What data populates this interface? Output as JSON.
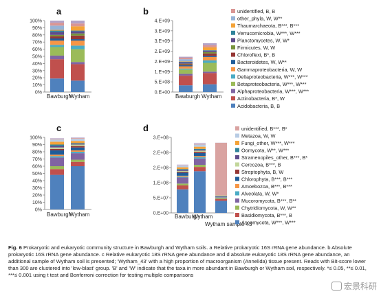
{
  "figure": {
    "caption_lead": "Fig. 6",
    "caption_text": "Prokaryotic and eukaryotic community structure in Bawburgh and Wytham soils. a Relative prokaryotic 16S rRNA gene abundance. b Absolute prokaryotic 16S rRNA gene abundance. c Relative eukaryotic 18S rRNA gene abundance and d absolute eukaryotic 18S rRNA gene abundance, an additional sample of Wytham soil is presented; 'Wytham_43' with a high proportion of macroorganism (Annelida) tissue present. Reads with Bit-score lower than 300 are clustered into 'low-blast' group. 'B' and 'W' indicate that the taxa in more abundant in Bawburgh or Wytham soil, respectively. *≤ 0.05, **≤ 0.01, ***≤ 0.001 using t test and Bonferroni correction for testing multiple comparisons",
    "watermark": "宏景科研"
  },
  "chart_data": [
    {
      "panel": "a",
      "type": "bar",
      "stacked": true,
      "categories": [
        "Bawburgh",
        "Wytham"
      ],
      "ylim": [
        0,
        100
      ],
      "yticks": [
        "0%",
        "10%",
        "20%",
        "30%",
        "40%",
        "50%",
        "60%",
        "70%",
        "80%",
        "90%",
        "100%"
      ],
      "series_ref": "prokaryote",
      "values": [
        [
          19,
          16
        ],
        [
          27,
          23
        ],
        [
          5,
          3
        ],
        [
          12,
          18
        ],
        [
          3,
          5
        ],
        [
          6,
          7
        ],
        [
          3,
          2
        ],
        [
          3,
          5
        ],
        [
          2,
          3
        ],
        [
          4,
          3
        ],
        [
          2,
          1
        ],
        [
          1,
          6
        ],
        [
          6,
          0
        ],
        [
          4,
          4
        ],
        [
          3,
          4
        ]
      ]
    },
    {
      "panel": "b",
      "type": "bar",
      "stacked": true,
      "categories": [
        "Bawburgh",
        "Wytham"
      ],
      "ylim": [
        0,
        3500000000
      ],
      "yticks": [
        "0.E+00",
        "5.E+08",
        "1.E+09",
        "2.E+09",
        "2.E+09",
        "3.E+09",
        "3.E+09",
        "4.E+09"
      ],
      "series_ref": "prokaryote",
      "values": [
        [
          330000000,
          380000000
        ],
        [
          470000000,
          550000000
        ],
        [
          90000000,
          70000000
        ],
        [
          210000000,
          430000000
        ],
        [
          50000000,
          120000000
        ],
        [
          110000000,
          170000000
        ],
        [
          50000000,
          50000000
        ],
        [
          50000000,
          120000000
        ],
        [
          30000000,
          70000000
        ],
        [
          70000000,
          70000000
        ],
        [
          30000000,
          20000000
        ],
        [
          20000000,
          140000000
        ],
        [
          100000000,
          0
        ],
        [
          70000000,
          100000000
        ],
        [
          50000000,
          100000000
        ]
      ]
    },
    {
      "panel": "c",
      "type": "bar",
      "stacked": true,
      "categories": [
        "Bawburgh",
        "Wytham"
      ],
      "ylim": [
        0,
        100
      ],
      "yticks": [
        "0%",
        "10%",
        "20%",
        "30%",
        "40%",
        "50%",
        "60%",
        "70%",
        "80%",
        "90%",
        "100%"
      ],
      "series_ref": "eukaryote",
      "values": [
        [
          48,
          60
        ],
        [
          8,
          6
        ],
        [
          4,
          3
        ],
        [
          12,
          9
        ],
        [
          2,
          2
        ],
        [
          2,
          2
        ],
        [
          6,
          4
        ],
        [
          2,
          2
        ],
        [
          2,
          2
        ],
        [
          2,
          1
        ],
        [
          2,
          1
        ],
        [
          4,
          3
        ],
        [
          3,
          3
        ],
        [
          1,
          1
        ],
        [
          1,
          1
        ]
      ]
    },
    {
      "panel": "d",
      "type": "bar",
      "stacked": true,
      "categories": [
        "Bawburgh",
        "Wytham",
        "Wytham sample 43"
      ],
      "ylim": [
        0,
        250000000
      ],
      "yticks": [
        "0.E+00",
        "5.E+07",
        "1.E+08",
        "2.E+08",
        "2.E+08",
        "3.E+08"
      ],
      "series_ref": "eukaryote",
      "values": [
        [
          78000000,
          138000000,
          40000000
        ],
        [
          13000000,
          14000000,
          6000000
        ],
        [
          6000000,
          7000000,
          3000000
        ],
        [
          20000000,
          21000000,
          2000000
        ],
        [
          3000000,
          4000000,
          1000000
        ],
        [
          3000000,
          4000000,
          1000000
        ],
        [
          10000000,
          10000000,
          2000000
        ],
        [
          3000000,
          4000000,
          500000
        ],
        [
          3000000,
          4000000,
          500000
        ],
        [
          3000000,
          3000000,
          500000
        ],
        [
          3000000,
          3000000,
          500000
        ],
        [
          6000000,
          7000000,
          1000000
        ],
        [
          5000000,
          7000000,
          1000000
        ],
        [
          1000000,
          2000000,
          173000000
        ],
        [
          3000000,
          4000000,
          500000
        ]
      ]
    }
  ],
  "series": {
    "prokaryote": [
      {
        "name": "Acidobacteria, B, B",
        "color": "#4f81bd"
      },
      {
        "name": "Actinobacteria, B*, W",
        "color": "#c0504d"
      },
      {
        "name": "Alphaproteobacteria, W***, W***",
        "color": "#8064a2"
      },
      {
        "name": "Betaproteobacteria, W***, W***",
        "color": "#9bbb59"
      },
      {
        "name": "Deltaproteobacteria, W***, W***",
        "color": "#4bacc6"
      },
      {
        "name": "Gammaproteobacteria, W, W",
        "color": "#f79646"
      },
      {
        "name": "Bacteroidetes, W, W**",
        "color": "#1f5c99"
      },
      {
        "name": "Chloroflexi, B*, B",
        "color": "#953735"
      },
      {
        "name": "Firmicutes, W, W",
        "color": "#77933c"
      },
      {
        "name": "Planctomycetes, W, W*",
        "color": "#5f4b8b"
      },
      {
        "name": "Verrucomicrobia, W***, W***",
        "color": "#31849b"
      },
      {
        "name": "Thaumarchaeota, B***, B***",
        "color": "#f4a338"
      },
      {
        "name": "other_phyla, W, W**",
        "color": "#95b3d7"
      },
      {
        "name": "unidentified, B, B",
        "color": "#d99694"
      },
      {
        "name": "",
        "color": "#b3a2c7"
      }
    ],
    "eukaryote": [
      {
        "name": "Ascomycota, W***, W***",
        "color": "#4f81bd"
      },
      {
        "name": "Basidiomycota, B***, B",
        "color": "#c0504d"
      },
      {
        "name": "Chytridiomycota, W, W**",
        "color": "#9bbb59"
      },
      {
        "name": "Mucoromycota, B***, B**",
        "color": "#8064a2"
      },
      {
        "name": "Alveolata, W, W*",
        "color": "#4bacc6"
      },
      {
        "name": "Amoebozoa, B***, B***",
        "color": "#f79646"
      },
      {
        "name": "Chlorophyta, B***, B***",
        "color": "#1f5c99"
      },
      {
        "name": "Streptophyta, B, W",
        "color": "#953735"
      },
      {
        "name": "Cercozoa, B***, B",
        "color": "#c3d69b"
      },
      {
        "name": "Stramenopiles_other, B***, B*",
        "color": "#5f4b8b"
      },
      {
        "name": "Oomycota, W**, W***",
        "color": "#31849b"
      },
      {
        "name": "Fungi_other, W***, W***",
        "color": "#f4a338"
      },
      {
        "name": "Metazoa, W, W",
        "color": "#b8cce4"
      },
      {
        "name": "unidentified, B***, B*",
        "color": "#d9a3a1"
      },
      {
        "name": "",
        "color": "#ccc0da"
      }
    ]
  }
}
